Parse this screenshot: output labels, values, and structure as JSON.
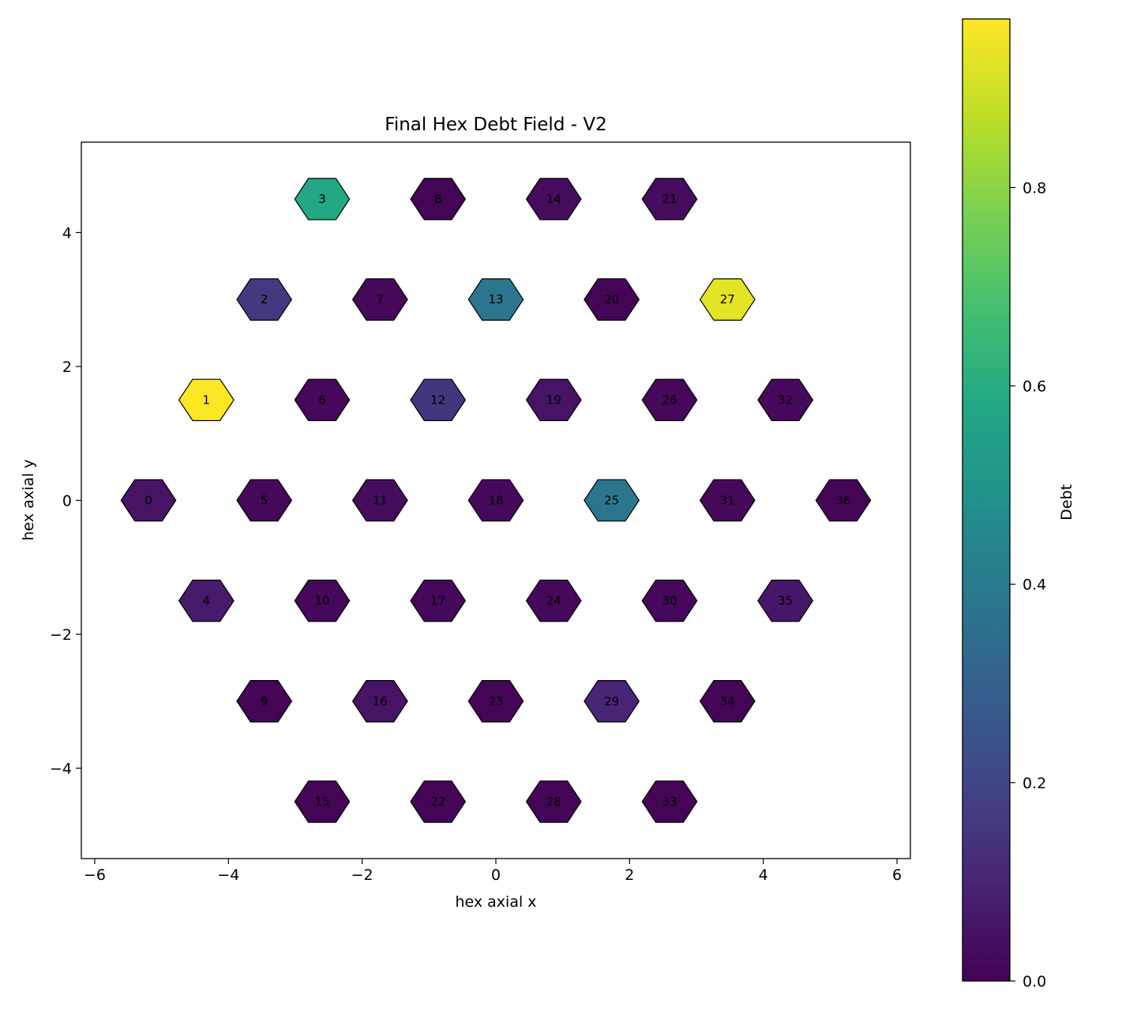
{
  "chart_data": {
    "type": "heatmap",
    "title": "Final Hex Debt Field - V2",
    "xlabel": "hex axial x",
    "ylabel": "hex axial y",
    "xlim": [
      -6.2,
      6.2
    ],
    "ylim": [
      -5.35,
      5.35
    ],
    "x_ticks": [
      -6,
      -4,
      -2,
      0,
      2,
      4,
      6
    ],
    "y_ticks": [
      -4,
      -2,
      0,
      2,
      4
    ],
    "x_tick_labels": [
      "−6",
      "−4",
      "−2",
      "0",
      "2",
      "4",
      "6"
    ],
    "y_tick_labels": [
      "−4",
      "−2",
      "0",
      "2",
      "4"
    ],
    "colorbar": {
      "label": "Debt",
      "colormap": "viridis",
      "range": [
        0,
        0.97
      ],
      "ticks": [
        0.0,
        0.2,
        0.4,
        0.6,
        0.8
      ],
      "tick_labels": [
        "0.0",
        "0.2",
        "0.4",
        "0.6",
        "0.8"
      ]
    },
    "grid": false,
    "cells": [
      {
        "id": "0",
        "x": -5.196,
        "y": 0.0,
        "value": 0.05
      },
      {
        "id": "1",
        "x": -4.33,
        "y": 1.5,
        "value": 0.97
      },
      {
        "id": "2",
        "x": -3.464,
        "y": 3.0,
        "value": 0.16
      },
      {
        "id": "3",
        "x": -2.598,
        "y": 4.5,
        "value": 0.58
      },
      {
        "id": "4",
        "x": -4.33,
        "y": -1.5,
        "value": 0.07
      },
      {
        "id": "5",
        "x": -3.464,
        "y": 0.0,
        "value": 0.02
      },
      {
        "id": "6",
        "x": -2.598,
        "y": 1.5,
        "value": 0.02
      },
      {
        "id": "7",
        "x": -1.732,
        "y": 3.0,
        "value": 0.02
      },
      {
        "id": "8",
        "x": -0.866,
        "y": 4.5,
        "value": 0.01
      },
      {
        "id": "9",
        "x": -3.464,
        "y": -3.0,
        "value": 0.01
      },
      {
        "id": "10",
        "x": -2.598,
        "y": -1.5,
        "value": 0.02
      },
      {
        "id": "11",
        "x": -1.732,
        "y": 0.0,
        "value": 0.03
      },
      {
        "id": "12",
        "x": -0.866,
        "y": 1.5,
        "value": 0.15
      },
      {
        "id": "13",
        "x": 0.0,
        "y": 3.0,
        "value": 0.38
      },
      {
        "id": "14",
        "x": 0.866,
        "y": 4.5,
        "value": 0.03
      },
      {
        "id": "15",
        "x": -2.598,
        "y": -4.5,
        "value": 0.01
      },
      {
        "id": "16",
        "x": -1.732,
        "y": -3.0,
        "value": 0.05
      },
      {
        "id": "17",
        "x": -0.866,
        "y": -1.5,
        "value": 0.02
      },
      {
        "id": "18",
        "x": 0.0,
        "y": 0.0,
        "value": 0.02
      },
      {
        "id": "19",
        "x": 0.866,
        "y": 1.5,
        "value": 0.05
      },
      {
        "id": "20",
        "x": 1.732,
        "y": 3.0,
        "value": 0.01
      },
      {
        "id": "21",
        "x": 2.598,
        "y": 4.5,
        "value": 0.03
      },
      {
        "id": "22",
        "x": -0.866,
        "y": -4.5,
        "value": 0.01
      },
      {
        "id": "23",
        "x": 0.0,
        "y": -3.0,
        "value": 0.01
      },
      {
        "id": "24",
        "x": 0.866,
        "y": -1.5,
        "value": 0.02
      },
      {
        "id": "25",
        "x": 1.732,
        "y": 0.0,
        "value": 0.38
      },
      {
        "id": "26",
        "x": 2.598,
        "y": 1.5,
        "value": 0.02
      },
      {
        "id": "27",
        "x": 3.464,
        "y": 3.0,
        "value": 0.93
      },
      {
        "id": "28",
        "x": 0.866,
        "y": -4.5,
        "value": 0.01
      },
      {
        "id": "29",
        "x": 1.732,
        "y": -3.0,
        "value": 0.1
      },
      {
        "id": "30",
        "x": 2.598,
        "y": -1.5,
        "value": 0.02
      },
      {
        "id": "31",
        "x": 3.464,
        "y": 0.0,
        "value": 0.02
      },
      {
        "id": "32",
        "x": 4.33,
        "y": 1.5,
        "value": 0.02
      },
      {
        "id": "33",
        "x": 2.598,
        "y": -4.5,
        "value": 0.01
      },
      {
        "id": "34",
        "x": 3.464,
        "y": -3.0,
        "value": 0.01
      },
      {
        "id": "35",
        "x": 4.33,
        "y": -1.5,
        "value": 0.06
      },
      {
        "id": "36",
        "x": 5.196,
        "y": 0.0,
        "value": 0.01
      }
    ]
  }
}
